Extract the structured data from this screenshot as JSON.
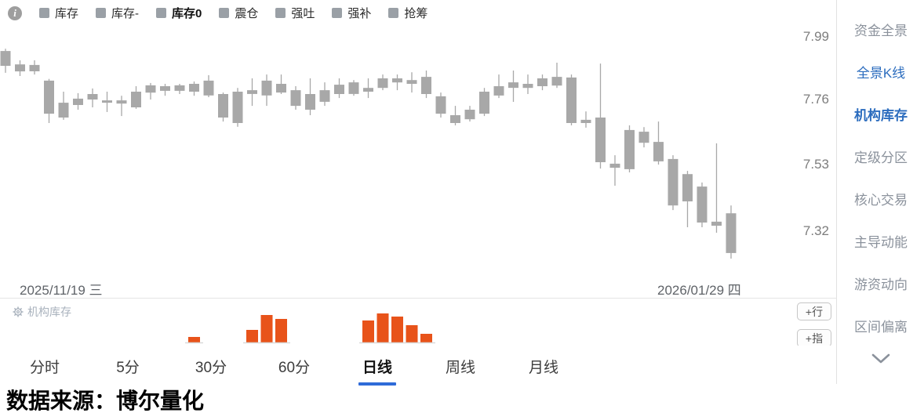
{
  "legend": {
    "info_icon": "info",
    "items": [
      {
        "label": "库存",
        "bold": false
      },
      {
        "label": "库存-",
        "bold": false
      },
      {
        "label": "库存0",
        "bold": true
      },
      {
        "label": "震仓",
        "bold": false
      },
      {
        "label": "强吐",
        "bold": false
      },
      {
        "label": "强补",
        "bold": false
      },
      {
        "label": "抢筹",
        "bold": false
      }
    ]
  },
  "price_axis": {
    "ticks": [
      {
        "label": "7.99",
        "price": 7.99
      },
      {
        "label": "7.76",
        "price": 7.76
      },
      {
        "label": "7.53",
        "price": 7.53
      },
      {
        "label": "7.32",
        "price": 7.32
      }
    ]
  },
  "x_axis": {
    "start_label": "2025/11/19 三",
    "end_label": "2026/01/29 四"
  },
  "subpanel": {
    "gear_icon": "settings",
    "label": "机构库存"
  },
  "buttons": {
    "add_row": "+行",
    "add_indicator": "+指"
  },
  "tabs": {
    "items": [
      "分时",
      "5分",
      "30分",
      "60分",
      "日线",
      "周线",
      "月线"
    ],
    "active": "日线"
  },
  "sidebar": {
    "items": [
      {
        "label": "资金全景",
        "state": "inactive"
      },
      {
        "label": "全景K线",
        "state": "active"
      },
      {
        "label": "机构库存",
        "state": "active-bold"
      },
      {
        "label": "定级分区",
        "state": "inactive"
      },
      {
        "label": "核心交易",
        "state": "inactive"
      },
      {
        "label": "主导动能",
        "state": "inactive"
      },
      {
        "label": "游资动向",
        "state": "inactive"
      },
      {
        "label": "区间偏离",
        "state": "inactive"
      }
    ],
    "collapse_icon": "chevron-down"
  },
  "footer": {
    "source_text": "数据来源：博尔量化"
  },
  "colors": {
    "candle_gray": "#a8a8a8",
    "inventory_orange": "#e8531a",
    "accent_blue": "#2b6cbe",
    "tab_underline_blue": "#2f6bd8",
    "inactive_gray": "#8b929c",
    "baseline_gray": "#d9d9d9"
  },
  "chart_data": {
    "type": "candlestick+bar",
    "title": "机构库存 日线 K线图",
    "x_range": [
      "2025/11/19",
      "2026/01/29"
    ],
    "y_ticks": [
      7.99,
      7.76,
      7.53,
      7.32
    ],
    "grid": false,
    "candles_format": [
      "high",
      "low",
      "body_top",
      "body_bottom"
    ],
    "candles": [
      [
        7.949,
        7.866,
        7.941,
        7.89
      ],
      [
        7.909,
        7.855,
        7.895,
        7.871
      ],
      [
        7.909,
        7.86,
        7.893,
        7.871
      ],
      [
        7.845,
        7.693,
        7.839,
        7.725
      ],
      [
        7.801,
        7.704,
        7.763,
        7.712
      ],
      [
        7.796,
        7.739,
        7.777,
        7.755
      ],
      [
        7.812,
        7.747,
        7.793,
        7.774
      ],
      [
        7.801,
        7.731,
        7.771,
        7.763
      ],
      [
        7.787,
        7.717,
        7.771,
        7.76
      ],
      [
        7.82,
        7.742,
        7.801,
        7.747
      ],
      [
        7.831,
        7.774,
        7.823,
        7.798
      ],
      [
        7.828,
        7.787,
        7.82,
        7.804
      ],
      [
        7.828,
        7.793,
        7.823,
        7.804
      ],
      [
        7.836,
        7.787,
        7.828,
        7.801
      ],
      [
        7.858,
        7.782,
        7.839,
        7.788
      ],
      [
        7.798,
        7.698,
        7.793,
        7.712
      ],
      [
        7.814,
        7.68,
        7.801,
        7.693
      ],
      [
        7.847,
        7.752,
        7.806,
        7.793
      ],
      [
        7.86,
        7.752,
        7.839,
        7.788
      ],
      [
        7.86,
        7.793,
        7.828,
        7.798
      ],
      [
        7.82,
        7.739,
        7.806,
        7.752
      ],
      [
        7.847,
        7.72,
        7.793,
        7.739
      ],
      [
        7.833,
        7.752,
        7.806,
        7.766
      ],
      [
        7.847,
        7.779,
        7.825,
        7.793
      ],
      [
        7.841,
        7.787,
        7.833,
        7.793
      ],
      [
        7.847,
        7.779,
        7.814,
        7.801
      ],
      [
        7.86,
        7.806,
        7.847,
        7.814
      ],
      [
        7.86,
        7.806,
        7.847,
        7.833
      ],
      [
        7.868,
        7.798,
        7.841,
        7.828
      ],
      [
        7.874,
        7.779,
        7.852,
        7.793
      ],
      [
        7.798,
        7.712,
        7.785,
        7.725
      ],
      [
        7.752,
        7.685,
        7.72,
        7.693
      ],
      [
        7.752,
        7.698,
        7.739,
        7.706
      ],
      [
        7.814,
        7.717,
        7.801,
        7.725
      ],
      [
        7.86,
        7.779,
        7.82,
        7.788
      ],
      [
        7.874,
        7.766,
        7.833,
        7.814
      ],
      [
        7.86,
        7.793,
        7.828,
        7.814
      ],
      [
        7.86,
        7.806,
        7.847,
        7.82
      ],
      [
        7.901,
        7.814,
        7.852,
        7.822
      ],
      [
        7.86,
        7.685,
        7.85,
        7.693
      ],
      [
        7.733,
        7.677,
        7.704,
        7.693
      ],
      [
        7.898,
        7.536,
        7.712,
        7.558
      ],
      [
        7.582,
        7.477,
        7.553,
        7.539
      ],
      [
        7.685,
        7.523,
        7.669,
        7.534
      ],
      [
        7.679,
        7.609,
        7.663,
        7.625
      ],
      [
        7.698,
        7.55,
        7.628,
        7.561
      ],
      [
        7.582,
        7.393,
        7.569,
        7.409
      ],
      [
        7.528,
        7.334,
        7.517,
        7.423
      ],
      [
        7.488,
        7.334,
        7.474,
        7.35
      ],
      [
        7.623,
        7.315,
        7.353,
        7.339
      ],
      [
        7.409,
        7.226,
        7.382,
        7.245
      ]
    ],
    "inventory_bars": [
      {
        "candle": 14,
        "v": 7
      },
      {
        "candle": 18,
        "v": 16
      },
      {
        "candle": 19,
        "v": 35
      },
      {
        "candle": 20,
        "v": 30
      },
      {
        "candle": 26,
        "v": 28
      },
      {
        "candle": 27,
        "v": 37
      },
      {
        "candle": 28,
        "v": 33
      },
      {
        "candle": 29,
        "v": 22
      },
      {
        "candle": 30,
        "v": 11
      }
    ]
  }
}
